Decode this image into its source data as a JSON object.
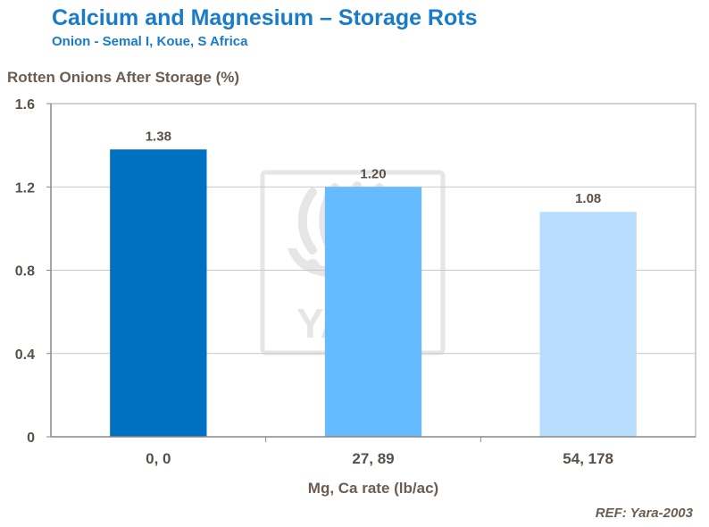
{
  "header": {
    "title": "Calcium and Magnesium – Storage Rots",
    "subtitle": "Onion - Semal I, Koue, S Africa"
  },
  "reference": "REF: Yara-2003",
  "watermark": {
    "text": "YARA",
    "logo_icon": "yara-viking-ship-logo"
  },
  "colors": {
    "title": "#1a7cc8",
    "label": "#6b5d4f",
    "grid": "#c8c8c8",
    "axis": "#888888",
    "bars": [
      "#0070c0",
      "#66bbff",
      "#b8dcfb"
    ]
  },
  "chart_data": {
    "type": "bar",
    "title": "Calcium and Magnesium – Storage Rots",
    "subtitle": "Onion - Semal I, Koue, S Africa",
    "xlabel": "Mg, Ca rate (lb/ac)",
    "ylabel": "Rotten Onions After Storage (%)",
    "categories": [
      "0, 0",
      "27, 89",
      "54, 178"
    ],
    "values": [
      1.38,
      1.2,
      1.08
    ],
    "value_labels": [
      "1.38",
      "1.20",
      "1.08"
    ],
    "ylim": [
      0,
      1.6
    ],
    "yticks": [
      0,
      0.4,
      0.8,
      1.2,
      1.6
    ],
    "ytick_labels": [
      "0",
      "0.4",
      "0.8",
      "1.2",
      "1.6"
    ],
    "grid": true,
    "legend": "none"
  }
}
